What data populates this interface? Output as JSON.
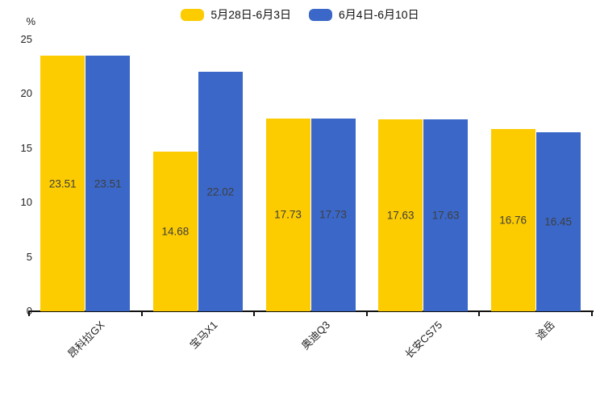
{
  "chart_data": {
    "type": "bar",
    "categories": [
      "昂科拉GX",
      "宝马X1",
      "奥迪Q3",
      "长安CS75",
      "途岳"
    ],
    "series": [
      {
        "name": "5月28日-6月3日",
        "color": "#FCCB00",
        "values": [
          23.51,
          14.68,
          17.73,
          17.63,
          16.76
        ]
      },
      {
        "name": "6月4日-6月10日",
        "color": "#3A67C8",
        "values": [
          23.51,
          22.02,
          17.73,
          17.63,
          16.45
        ]
      }
    ],
    "ylabel": "%",
    "ylim": [
      0,
      25
    ],
    "yticks": [
      0,
      5,
      10,
      15,
      20,
      25
    ],
    "grid": false,
    "legend_position": "top-center",
    "value_labels": "inside-center",
    "value_label_color": "#3f3f3f",
    "axis_color": "#111111"
  }
}
